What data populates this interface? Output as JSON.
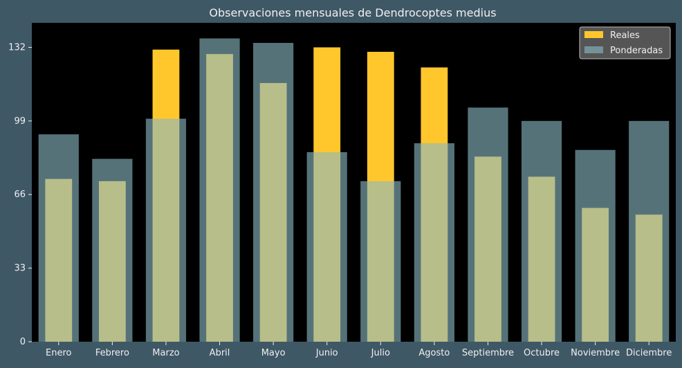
{
  "chart_data": {
    "type": "bar",
    "title": "Observaciones mensuales de Dendrocoptes medius",
    "xlabel": "",
    "ylabel": "",
    "categories": [
      "Enero",
      "Febrero",
      "Marzo",
      "Abril",
      "Mayo",
      "Junio",
      "Julio",
      "Agosto",
      "Septiembre",
      "Octubre",
      "Noviembre",
      "Diciembre"
    ],
    "series": [
      {
        "name": "Reales",
        "values": [
          73,
          72,
          131,
          129,
          116,
          132,
          130,
          123,
          83,
          74,
          60,
          57
        ],
        "color": "#ffc72c"
      },
      {
        "name": "Ponderadas",
        "values": [
          93,
          82,
          100,
          136,
          134,
          85,
          72,
          89,
          105,
          99,
          86,
          99
        ],
        "color": "#8ab8c4"
      }
    ],
    "yticks": [
      0,
      33,
      66,
      99,
      132
    ],
    "ylim": [
      0,
      143
    ],
    "legend": "top-right",
    "grid": false,
    "colors": {
      "background": "#3f5866",
      "plot_area": "#000000",
      "text": "#f0f0f0"
    }
  }
}
